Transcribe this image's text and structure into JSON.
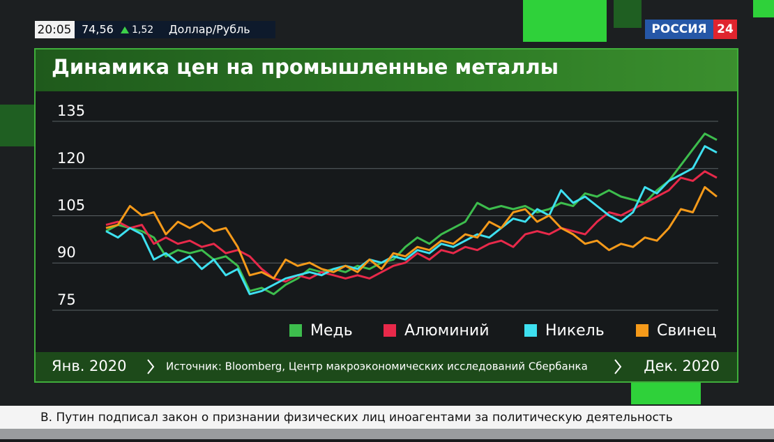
{
  "top_bar": {
    "time": "20:05",
    "rate": "74,56",
    "change": "1,52",
    "pair": "Доллар/Рубль"
  },
  "logo": {
    "name": "РОССИЯ",
    "number": "24"
  },
  "chart_data": {
    "type": "line",
    "title": "Динамика цен на промышленные металлы",
    "ylim": [
      72,
      139
    ],
    "yticks": [
      75,
      90,
      105,
      120,
      135
    ],
    "grid": true,
    "legend": "bottom-right",
    "series": [
      {
        "name": "Медь",
        "color": "#3dbd4d",
        "values": [
          97,
          99,
          98,
          97,
          95,
          89,
          91,
          90,
          91,
          88,
          89,
          86,
          78,
          79,
          77,
          80,
          82,
          85,
          84,
          85,
          84,
          86,
          85,
          87,
          88,
          92,
          95,
          93,
          96,
          98,
          100,
          106,
          104,
          105,
          104,
          105,
          103,
          104,
          106,
          105,
          109,
          108,
          110,
          108,
          107,
          106,
          110,
          113,
          118,
          123,
          128,
          126
        ]
      },
      {
        "name": "Алюминий",
        "color": "#e8294a",
        "values": [
          99,
          100,
          98,
          99,
          93,
          95,
          93,
          94,
          92,
          93,
          90,
          91,
          89,
          85,
          82,
          81,
          83,
          82,
          84,
          83,
          82,
          83,
          82,
          84,
          86,
          87,
          90,
          88,
          91,
          90,
          92,
          91,
          93,
          94,
          92,
          96,
          97,
          96,
          98,
          97,
          96,
          100,
          103,
          102,
          104,
          106,
          108,
          110,
          114,
          113,
          116,
          114
        ]
      },
      {
        "name": "Никель",
        "color": "#3ee0f0",
        "values": [
          97,
          95,
          98,
          96,
          88,
          90,
          87,
          89,
          85,
          88,
          83,
          85,
          77,
          78,
          80,
          82,
          83,
          84,
          83,
          85,
          86,
          85,
          88,
          87,
          89,
          88,
          91,
          90,
          93,
          92,
          94,
          96,
          95,
          98,
          101,
          100,
          104,
          102,
          110,
          106,
          108,
          105,
          102,
          100,
          103,
          111,
          109,
          113,
          115,
          117,
          124,
          122
        ]
      },
      {
        "name": "Свинец",
        "color": "#f59a1a",
        "values": [
          98,
          99,
          105,
          102,
          103,
          96,
          100,
          98,
          100,
          97,
          98,
          92,
          83,
          84,
          82,
          88,
          86,
          87,
          85,
          84,
          86,
          84,
          88,
          85,
          90,
          89,
          92,
          91,
          94,
          93,
          96,
          95,
          100,
          98,
          103,
          104,
          100,
          102,
          98,
          96,
          93,
          94,
          91,
          93,
          92,
          95,
          94,
          98,
          104,
          103,
          111,
          108
        ]
      }
    ]
  },
  "footer": {
    "start": "Янв. 2020",
    "source": "Источник: Bloomberg, Центр макроэкономических исследований Сбербанка",
    "end": "Дек. 2020"
  },
  "ticker": "В. Путин подписал закон о признании физических лиц иноагентами за политическую деятельность"
}
